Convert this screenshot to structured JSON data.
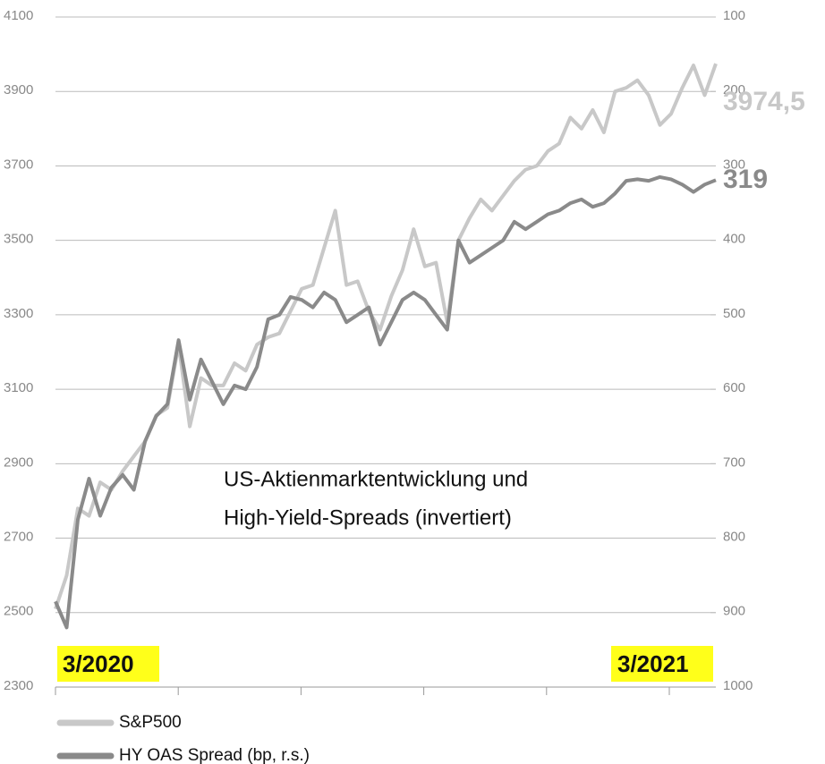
{
  "chart_data": {
    "type": "line",
    "title": [
      "US-Aktienmarktentwicklung und",
      "High-Yield-Spreads (invertiert)"
    ],
    "annotations": [
      "3/2020",
      "3/2021"
    ],
    "ylim": [
      2300,
      4100
    ],
    "yticks": [
      2300,
      2500,
      2700,
      2900,
      3100,
      3300,
      3500,
      3700,
      3900,
      4100
    ],
    "y2lim": [
      1000,
      100
    ],
    "y2ticks": [
      100,
      200,
      300,
      400,
      500,
      600,
      700,
      800,
      900,
      1000
    ],
    "y2_inverted": true,
    "grid": true,
    "series": [
      {
        "name": "S&P500",
        "color": "#c8c8c8",
        "end_label": "3974,5",
        "values": [
          2510,
          2600,
          2780,
          2760,
          2850,
          2830,
          2880,
          2920,
          2960,
          3030,
          3050,
          3220,
          3000,
          3130,
          3110,
          3110,
          3170,
          3150,
          3220,
          3240,
          3250,
          3310,
          3370,
          3380,
          3480,
          3580,
          3380,
          3390,
          3310,
          3260,
          3350,
          3420,
          3530,
          3430,
          3440,
          3280,
          3500,
          3560,
          3610,
          3580,
          3620,
          3660,
          3690,
          3700,
          3740,
          3760,
          3830,
          3800,
          3850,
          3790,
          3900,
          3910,
          3930,
          3890,
          3810,
          3840,
          3910,
          3970,
          3890,
          3974.5
        ]
      },
      {
        "name": "HY OAS Spread (bp, r.s.)",
        "color": "#8a8a8a",
        "axis": "y2",
        "end_label": "319",
        "values": [
          885,
          920,
          775,
          720,
          770,
          732,
          715,
          735,
          670,
          636,
          620,
          534,
          614,
          560,
          590,
          620,
          595,
          600,
          570,
          506,
          500,
          476,
          480,
          490,
          470,
          480,
          510,
          500,
          490,
          540,
          510,
          480,
          470,
          480,
          500,
          520,
          400,
          430,
          420,
          410,
          400,
          375,
          385,
          375,
          365,
          360,
          350,
          345,
          355,
          350,
          337,
          320,
          318,
          320,
          315,
          318,
          325,
          335,
          325,
          319
        ]
      }
    ]
  }
}
